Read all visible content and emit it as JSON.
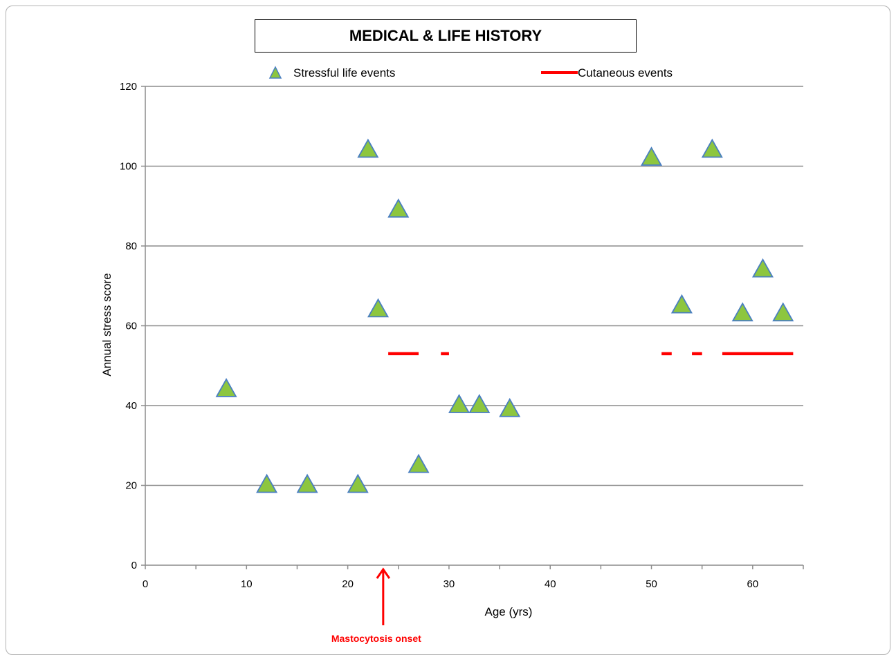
{
  "colors": {
    "triangle_fill": "#8dc63f",
    "triangle_stroke": "#4a7fc1",
    "cutaneous": "#ff0000",
    "grid": "#8c8c8c",
    "annotation": "#ff0000"
  },
  "chart_data": {
    "type": "scatter",
    "title": "MEDICAL & LIFE HISTORY",
    "xlabel": "Age  (yrs)",
    "ylabel": "Annual stress  score",
    "xlim": [
      0,
      65
    ],
    "ylim": [
      0,
      120
    ],
    "xticks": [
      0,
      10,
      20,
      30,
      40,
      50,
      60
    ],
    "yticks": [
      0,
      20,
      40,
      60,
      80,
      100,
      120
    ],
    "grid": "horizontal",
    "legend_position": "top",
    "series": [
      {
        "name": "Stressful life events",
        "marker": "triangle",
        "points": [
          {
            "x": 8,
            "y": 44
          },
          {
            "x": 12,
            "y": 20
          },
          {
            "x": 16,
            "y": 20
          },
          {
            "x": 21,
            "y": 20
          },
          {
            "x": 22,
            "y": 104
          },
          {
            "x": 23,
            "y": 64
          },
          {
            "x": 25,
            "y": 89
          },
          {
            "x": 27,
            "y": 25
          },
          {
            "x": 31,
            "y": 40
          },
          {
            "x": 33,
            "y": 40
          },
          {
            "x": 36,
            "y": 39
          },
          {
            "x": 50,
            "y": 102
          },
          {
            "x": 53,
            "y": 65
          },
          {
            "x": 56,
            "y": 104
          },
          {
            "x": 59,
            "y": 63
          },
          {
            "x": 61,
            "y": 74
          },
          {
            "x": 63,
            "y": 63
          }
        ]
      },
      {
        "name": "Cutaneous events",
        "marker": "segment",
        "y": 53,
        "segments": [
          [
            24,
            27
          ],
          [
            29.2,
            30
          ],
          [
            51,
            52
          ],
          [
            54,
            55
          ],
          [
            57,
            64
          ]
        ]
      }
    ],
    "annotations": [
      {
        "text": "Mastocytosis onset",
        "x": 23.5,
        "arrow": "up"
      }
    ]
  }
}
